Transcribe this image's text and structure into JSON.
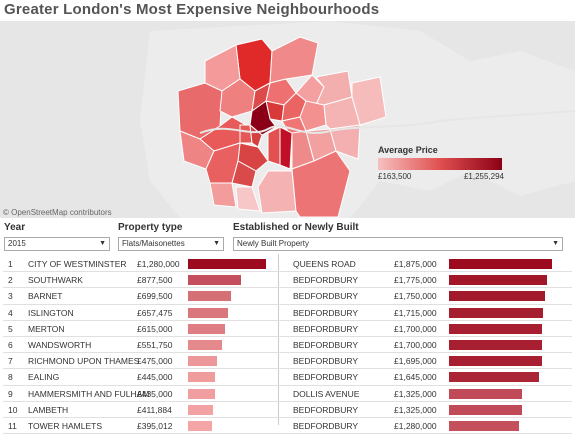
{
  "title": "Greater London's Most Expensive Neighbourhoods",
  "map": {
    "attribution": "© OpenStreetMap contributors",
    "legend": {
      "title": "Average Price",
      "min_label": "£163,500",
      "max_label": "£1,255,294",
      "colors": [
        "#f7c0c0",
        "#e05050",
        "#8b0016"
      ]
    }
  },
  "filters": {
    "year": {
      "label": "Year",
      "value": "2015"
    },
    "property_type": {
      "label": "Property type",
      "value": "Flats/Maisonettes"
    },
    "established": {
      "label": "Established or Newly Built",
      "value": "Newly Built Property"
    }
  },
  "boroughs": [
    {
      "rank": "1",
      "name": "CITY OF WESTMINSTER",
      "price": "£1,280,000",
      "value": 1280000
    },
    {
      "rank": "2",
      "name": "SOUTHWARK",
      "price": "£877,500",
      "value": 877500
    },
    {
      "rank": "3",
      "name": "BARNET",
      "price": "£699,500",
      "value": 699500
    },
    {
      "rank": "4",
      "name": "ISLINGTON",
      "price": "£657,475",
      "value": 657475
    },
    {
      "rank": "5",
      "name": "MERTON",
      "price": "£615,000",
      "value": 615000
    },
    {
      "rank": "6",
      "name": "WANDSWORTH",
      "price": "£551,750",
      "value": 551750
    },
    {
      "rank": "7",
      "name": "RICHMOND UPON THAMES",
      "price": "£475,000",
      "value": 475000
    },
    {
      "rank": "8",
      "name": "EALING",
      "price": "£445,000",
      "value": 445000
    },
    {
      "rank": "9",
      "name": "HAMMERSMITH AND FULHAM",
      "price": "£435,000",
      "value": 435000
    },
    {
      "rank": "10",
      "name": "LAMBETH",
      "price": "£411,884",
      "value": 411884
    },
    {
      "rank": "11",
      "name": "TOWER HAMLETS",
      "price": "£395,012",
      "value": 395012
    }
  ],
  "streets": [
    {
      "name": "QUEENS ROAD",
      "price": "£1,875,000",
      "value": 1875000
    },
    {
      "name": "BEDFORDBURY",
      "price": "£1,775,000",
      "value": 1775000
    },
    {
      "name": "BEDFORDBURY",
      "price": "£1,750,000",
      "value": 1750000
    },
    {
      "name": "BEDFORDBURY",
      "price": "£1,715,000",
      "value": 1715000
    },
    {
      "name": "BEDFORDBURY",
      "price": "£1,700,000",
      "value": 1700000
    },
    {
      "name": "BEDFORDBURY",
      "price": "£1,700,000",
      "value": 1700000
    },
    {
      "name": "BEDFORDBURY",
      "price": "£1,695,000",
      "value": 1695000
    },
    {
      "name": "BEDFORDBURY",
      "price": "£1,645,000",
      "value": 1645000
    },
    {
      "name": "DOLLIS AVENUE",
      "price": "£1,325,000",
      "value": 1325000
    },
    {
      "name": "BEDFORDBURY",
      "price": "£1,325,000",
      "value": 1325000
    },
    {
      "name": "BEDFORDBURY",
      "price": "£1,280,000",
      "value": 1280000
    }
  ],
  "colors": {
    "bar_dark": "#9b0a1f",
    "bar_light": "#f4a5a5"
  }
}
